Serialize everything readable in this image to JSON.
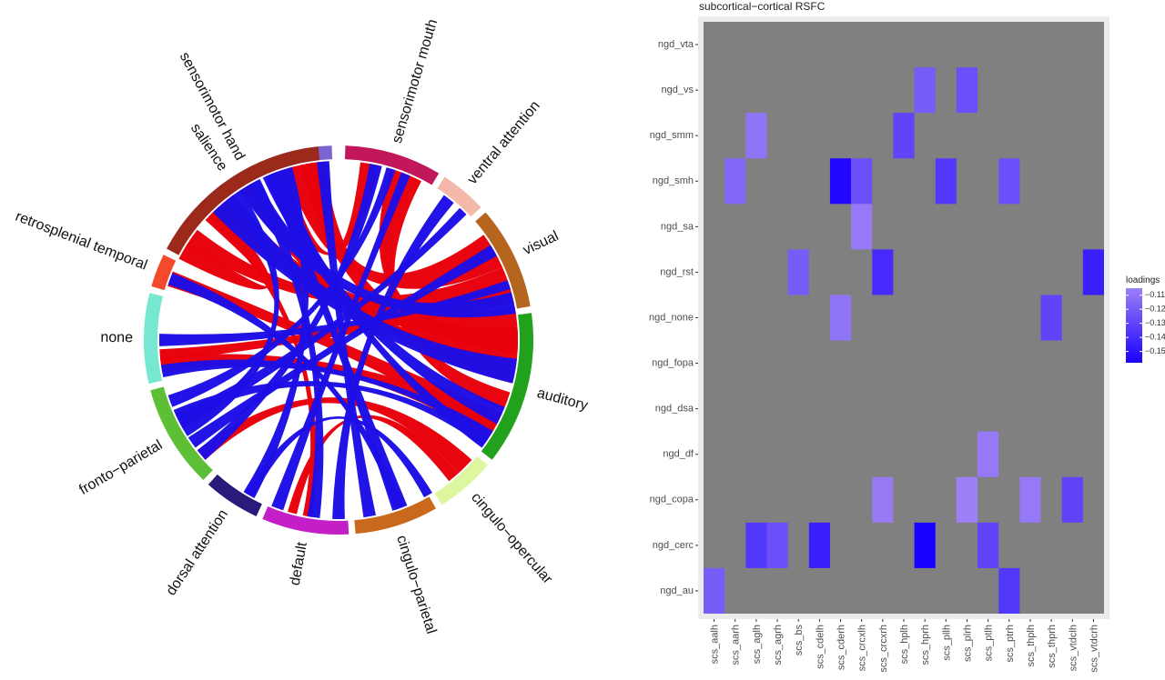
{
  "chord_diagram": {
    "sectors": [
      {
        "label": "sensorimotor hand",
        "color": "#7b63d1"
      },
      {
        "label": "sensorimotor mouth",
        "color": "#c2185b"
      },
      {
        "label": "ventral attention",
        "color": "#f4b9aa"
      },
      {
        "label": "visual",
        "color": "#b5651d"
      },
      {
        "label": "auditory",
        "color": "#22a11c"
      },
      {
        "label": "cingulo−opercular",
        "color": "#ddf7a1"
      },
      {
        "label": "cingulo−parietal",
        "color": "#c8691d"
      },
      {
        "label": "default",
        "color": "#c41ec6"
      },
      {
        "label": "dorsal attention",
        "color": "#2b1a7a"
      },
      {
        "label": "fronto−parietal",
        "color": "#5cbf35"
      },
      {
        "label": "none",
        "color": "#76e8d1"
      },
      {
        "label": "retrosplenial temporal",
        "color": "#f44a2b"
      },
      {
        "label": "salience",
        "color": "#9b2a1b"
      }
    ],
    "link_colors": {
      "positive": "#e8000b",
      "negative": "#1e0ee6"
    }
  },
  "chart_data": {
    "type": "heatmap",
    "title": "subcortical−cortical RSFC",
    "y_categories": [
      "ngd_vta",
      "ngd_vs",
      "ngd_smm",
      "ngd_smh",
      "ngd_sa",
      "ngd_rst",
      "ngd_none",
      "ngd_fopa",
      "ngd_dsa",
      "ngd_df",
      "ngd_copa",
      "ngd_cerc",
      "ngd_au"
    ],
    "x_categories": [
      "scs_aalh",
      "scs_aarh",
      "scs_aglh",
      "scs_agrh",
      "scs_bs",
      "scs_cdelh",
      "scs_cderh",
      "scs_crcxlh",
      "scs_crcxrh",
      "scs_hplh",
      "scs_hprh",
      "scs_pllh",
      "scs_plrh",
      "scs_ptlh",
      "scs_ptrh",
      "scs_thplh",
      "scs_thprh",
      "scs_vtdclh",
      "scs_vtdcrh"
    ],
    "cells": [
      {
        "y": "ngd_vs",
        "x": "scs_hprh",
        "value": -0.12
      },
      {
        "y": "ngd_vs",
        "x": "scs_plrh",
        "value": -0.125
      },
      {
        "y": "ngd_smm",
        "x": "scs_aglh",
        "value": -0.11
      },
      {
        "y": "ngd_smm",
        "x": "scs_hplh",
        "value": -0.13
      },
      {
        "y": "ngd_smh",
        "x": "scs_aarh",
        "value": -0.115
      },
      {
        "y": "ngd_smh",
        "x": "scs_cderh",
        "value": -0.155
      },
      {
        "y": "ngd_smh",
        "x": "scs_crcxlh",
        "value": -0.125
      },
      {
        "y": "ngd_smh",
        "x": "scs_pllh",
        "value": -0.135
      },
      {
        "y": "ngd_smh",
        "x": "scs_ptrh",
        "value": -0.125
      },
      {
        "y": "ngd_sa",
        "x": "scs_crcxlh",
        "value": -0.108
      },
      {
        "y": "ngd_rst",
        "x": "scs_bs",
        "value": -0.12
      },
      {
        "y": "ngd_rst",
        "x": "scs_crcxrh",
        "value": -0.14
      },
      {
        "y": "ngd_rst",
        "x": "scs_vtdcrh",
        "value": -0.145
      },
      {
        "y": "ngd_none",
        "x": "scs_cderh",
        "value": -0.11
      },
      {
        "y": "ngd_none",
        "x": "scs_thprh",
        "value": -0.13
      },
      {
        "y": "ngd_df",
        "x": "scs_ptlh",
        "value": -0.108
      },
      {
        "y": "ngd_copa",
        "x": "scs_crcxrh",
        "value": -0.107
      },
      {
        "y": "ngd_copa",
        "x": "scs_plrh",
        "value": -0.105
      },
      {
        "y": "ngd_copa",
        "x": "scs_thplh",
        "value": -0.108
      },
      {
        "y": "ngd_copa",
        "x": "scs_vtdclh",
        "value": -0.13
      },
      {
        "y": "ngd_cerc",
        "x": "scs_aglh",
        "value": -0.135
      },
      {
        "y": "ngd_cerc",
        "x": "scs_agrh",
        "value": -0.125
      },
      {
        "y": "ngd_cerc",
        "x": "scs_cdelh",
        "value": -0.145
      },
      {
        "y": "ngd_cerc",
        "x": "scs_hprh",
        "value": -0.158
      },
      {
        "y": "ngd_cerc",
        "x": "scs_ptlh",
        "value": -0.13
      },
      {
        "y": "ngd_au",
        "x": "scs_aalh",
        "value": -0.12
      },
      {
        "y": "ngd_au",
        "x": "scs_ptrh",
        "value": -0.135
      }
    ],
    "legend": {
      "title": "loadings",
      "ticks": [
        "−0.11",
        "−0.12",
        "−0.13",
        "−0.14",
        "−0.15"
      ],
      "tick_values": [
        -0.11,
        -0.12,
        -0.13,
        -0.14,
        -0.15
      ],
      "range": [
        -0.105,
        -0.158
      ],
      "color_high": "#9c80f5",
      "color_low": "#1a00ff"
    },
    "background_color": "#808080"
  }
}
